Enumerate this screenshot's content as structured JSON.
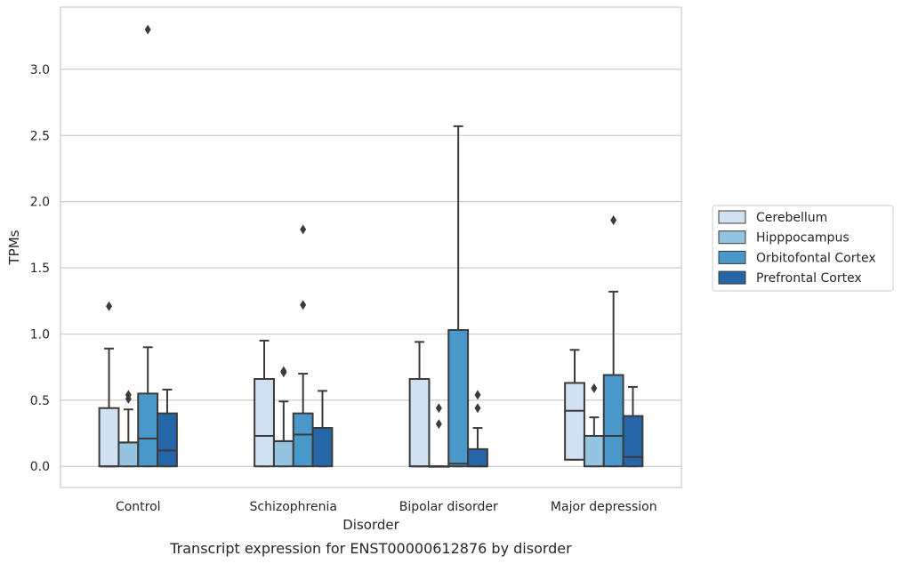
{
  "chart_data": {
    "type": "box",
    "title": "",
    "caption": "Transcript expression for ENST00000612876 by disorder",
    "xlabel": "Disorder",
    "ylabel": "TPMs",
    "ylim": [
      -0.16,
      3.47
    ],
    "yticks": [
      0.0,
      0.5,
      1.0,
      1.5,
      2.0,
      2.5,
      3.0
    ],
    "ytick_labels": [
      "0.0",
      "0.5",
      "1.0",
      "1.5",
      "2.0",
      "2.5",
      "3.0"
    ],
    "categories": [
      "Control",
      "Schizophrenia",
      "Bipolar disorder",
      "Major depression"
    ],
    "grid": "y",
    "legend_position": "right",
    "series": [
      {
        "name": "Cerebellum",
        "color": "#d0e1f2",
        "boxes": [
          {
            "whislo": 0.0,
            "q1": 0.0,
            "med": 0.0,
            "q3": 0.44,
            "whishi": 0.89,
            "fliers": [
              1.21
            ]
          },
          {
            "whislo": 0.0,
            "q1": 0.0,
            "med": 0.23,
            "q3": 0.66,
            "whishi": 0.95,
            "fliers": []
          },
          {
            "whislo": 0.0,
            "q1": 0.0,
            "med": 0.0,
            "q3": 0.66,
            "whishi": 0.94,
            "fliers": []
          },
          {
            "whislo": 0.05,
            "q1": 0.05,
            "med": 0.42,
            "q3": 0.63,
            "whishi": 0.88,
            "fliers": []
          }
        ]
      },
      {
        "name": "Hipppocampus",
        "color": "#94c4df",
        "boxes": [
          {
            "whislo": 0.0,
            "q1": 0.0,
            "med": 0.18,
            "q3": 0.18,
            "whishi": 0.43,
            "fliers": [
              0.51,
              0.54
            ]
          },
          {
            "whislo": 0.0,
            "q1": 0.0,
            "med": 0.19,
            "q3": 0.19,
            "whishi": 0.49,
            "fliers": [
              0.71,
              0.72
            ]
          },
          {
            "whislo": 0.0,
            "q1": 0.0,
            "med": 0.0,
            "q3": 0.0,
            "whishi": 0.0,
            "fliers": [
              0.32,
              0.44
            ]
          },
          {
            "whislo": 0.0,
            "q1": 0.0,
            "med": 0.23,
            "q3": 0.23,
            "whishi": 0.37,
            "fliers": [
              0.59
            ]
          }
        ]
      },
      {
        "name": "Orbitofontal Cortex",
        "color": "#4a98c9",
        "boxes": [
          {
            "whislo": 0.0,
            "q1": 0.0,
            "med": 0.21,
            "q3": 0.55,
            "whishi": 0.9,
            "fliers": [
              3.3
            ]
          },
          {
            "whislo": 0.0,
            "q1": 0.0,
            "med": 0.24,
            "q3": 0.4,
            "whishi": 0.7,
            "fliers": [
              1.22,
              1.79
            ]
          },
          {
            "whislo": 0.0,
            "q1": 0.0,
            "med": 0.02,
            "q3": 1.03,
            "whishi": 2.57,
            "fliers": []
          },
          {
            "whislo": 0.0,
            "q1": 0.0,
            "med": 0.23,
            "q3": 0.69,
            "whishi": 1.32,
            "fliers": [
              1.86
            ]
          }
        ]
      },
      {
        "name": "Prefrontal Cortex",
        "color": "#2466a8",
        "boxes": [
          {
            "whislo": 0.0,
            "q1": 0.0,
            "med": 0.12,
            "q3": 0.4,
            "whishi": 0.58,
            "fliers": []
          },
          {
            "whislo": 0.0,
            "q1": 0.0,
            "med": 0.29,
            "q3": 0.29,
            "whishi": 0.57,
            "fliers": []
          },
          {
            "whislo": 0.0,
            "q1": 0.0,
            "med": 0.0,
            "q3": 0.13,
            "whishi": 0.29,
            "fliers": [
              0.44,
              0.54
            ]
          },
          {
            "whislo": 0.0,
            "q1": 0.0,
            "med": 0.07,
            "q3": 0.38,
            "whishi": 0.6,
            "fliers": []
          }
        ]
      }
    ]
  }
}
